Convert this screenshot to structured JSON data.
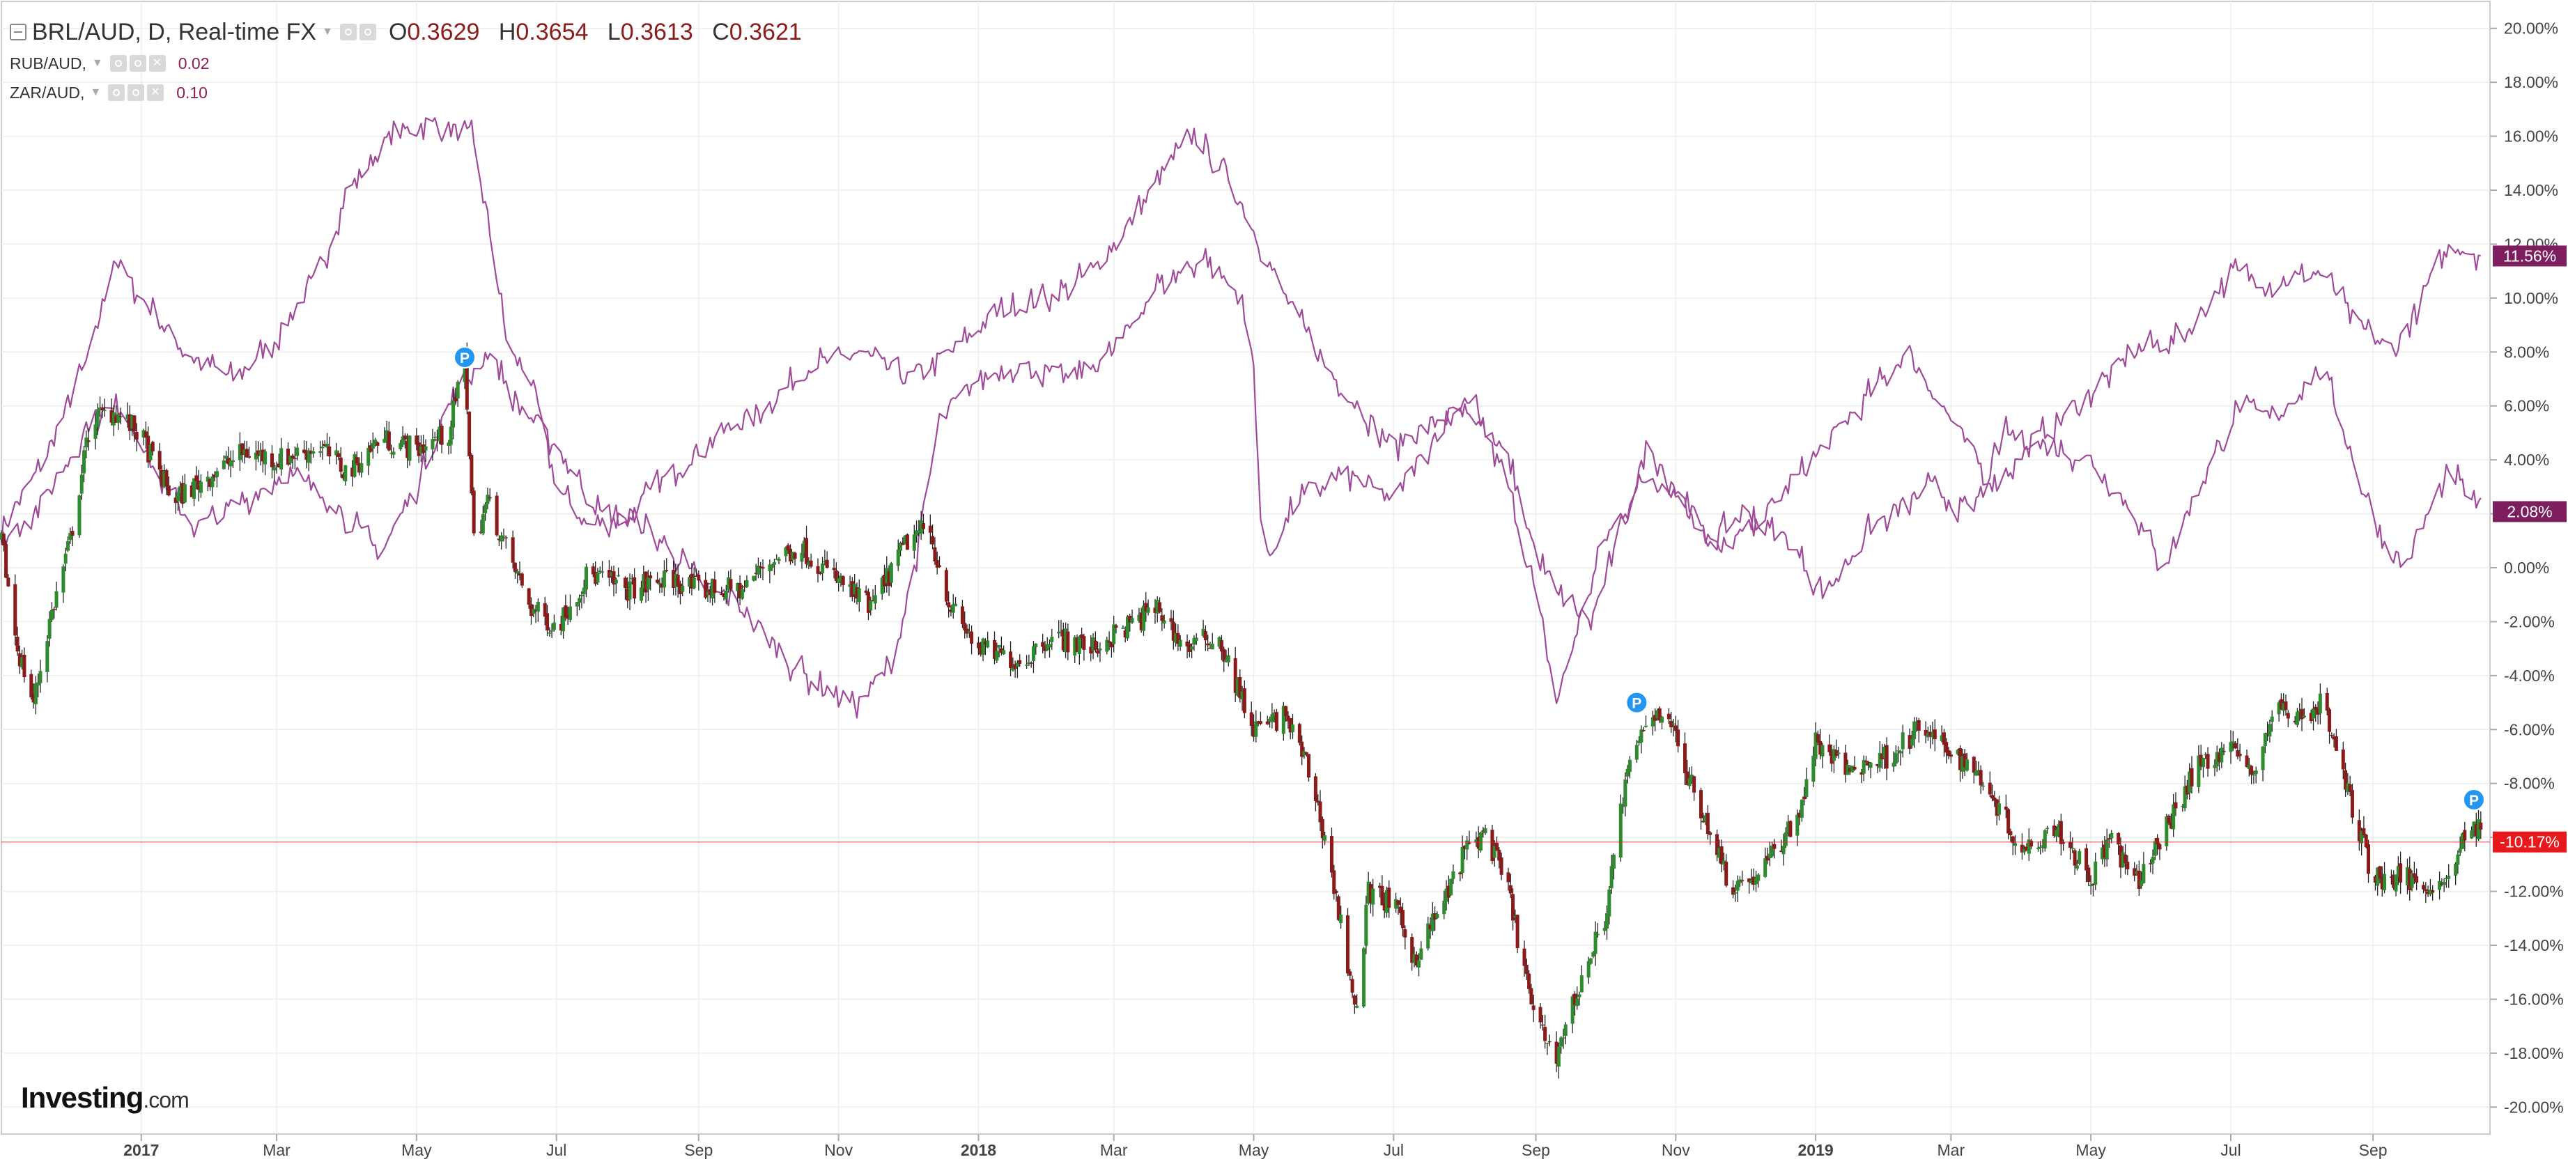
{
  "header": {
    "title": "BRL/AUD, D, Real-time FX",
    "ohlc": [
      {
        "key": "O",
        "value": "0.3629"
      },
      {
        "key": "H",
        "value": "0.3654"
      },
      {
        "key": "L",
        "value": "0.3613"
      },
      {
        "key": "C",
        "value": "0.3621"
      }
    ],
    "overlays": [
      {
        "label": "RUB/AUD,",
        "value": "0.02"
      },
      {
        "label": "ZAR/AUD,",
        "value": "0.10"
      }
    ]
  },
  "branding": {
    "logo_main": "Investing",
    "logo_suffix": ".com"
  },
  "colors": {
    "up": "#2e8b2e",
    "down": "#8b1a1a",
    "overlay": "#a04a9a",
    "overlay_badge": "#7d1f5e",
    "current_price": "#e8191c",
    "marker": "#2196f3",
    "grid": "#eeeeee",
    "axis_text": "#444444"
  },
  "chart_data": {
    "type": "candlestick",
    "y_unit": "percent change",
    "ylim": [
      -21,
      21
    ],
    "y_ticks": [
      20,
      18,
      16,
      14,
      12,
      10,
      8,
      6,
      4,
      2,
      0,
      -2,
      -4,
      -6,
      -8,
      -10,
      -12,
      -14,
      -16,
      -18,
      -20
    ],
    "y_tick_labels": [
      "20.00%",
      "18.00%",
      "16.00%",
      "14.00%",
      "12.00%",
      "10.00%",
      "8.00%",
      "6.00%",
      "4.00%",
      "2.00%",
      "0.00%",
      "-2.00%",
      "-4.00%",
      "-6.00%",
      "-8.00%",
      "-10.00%",
      "-12.00%",
      "-14.00%",
      "-16.00%",
      "-18.00%",
      "-20.00%"
    ],
    "x_range": [
      "2016-11-01",
      "2019-10-22"
    ],
    "x_ticks": [
      {
        "date": "2017-01-01",
        "label": "2017",
        "bold": true
      },
      {
        "date": "2017-03-01",
        "label": "Mar"
      },
      {
        "date": "2017-05-01",
        "label": "May"
      },
      {
        "date": "2017-07-01",
        "label": "Jul"
      },
      {
        "date": "2017-09-01",
        "label": "Sep"
      },
      {
        "date": "2017-11-01",
        "label": "Nov"
      },
      {
        "date": "2018-01-01",
        "label": "2018",
        "bold": true
      },
      {
        "date": "2018-03-01",
        "label": "Mar"
      },
      {
        "date": "2018-05-01",
        "label": "May"
      },
      {
        "date": "2018-07-01",
        "label": "Jul"
      },
      {
        "date": "2018-09-01",
        "label": "Sep"
      },
      {
        "date": "2018-11-01",
        "label": "Nov"
      },
      {
        "date": "2019-01-01",
        "label": "2019",
        "bold": true
      },
      {
        "date": "2019-03-01",
        "label": "Mar"
      },
      {
        "date": "2019-05-01",
        "label": "May"
      },
      {
        "date": "2019-07-01",
        "label": "Jul"
      },
      {
        "date": "2019-09-01",
        "label": "Sep"
      }
    ],
    "main_series": {
      "name": "BRL/AUD",
      "close_path": [
        [
          "2016-11-01",
          1
        ],
        [
          "2016-11-08",
          -3
        ],
        [
          "2016-11-15",
          -5
        ],
        [
          "2016-11-22",
          -2
        ],
        [
          "2016-12-01",
          1
        ],
        [
          "2016-12-10",
          5.5
        ],
        [
          "2016-12-20",
          5.8
        ],
        [
          "2016-12-31",
          5
        ],
        [
          "2017-01-15",
          2.5
        ],
        [
          "2017-02-01",
          3.5
        ],
        [
          "2017-02-15",
          4.3
        ],
        [
          "2017-03-01",
          4.0
        ],
        [
          "2017-03-20",
          4.5
        ],
        [
          "2017-04-01",
          3.5
        ],
        [
          "2017-04-15",
          4.8
        ],
        [
          "2017-05-01",
          4.4
        ],
        [
          "2017-05-15",
          5.0
        ],
        [
          "2017-05-22",
          7.8
        ],
        [
          "2017-05-26",
          1.0
        ],
        [
          "2017-06-01",
          2.5
        ],
        [
          "2017-06-10",
          0.5
        ],
        [
          "2017-06-20",
          -1.5
        ],
        [
          "2017-07-01",
          -2.2
        ],
        [
          "2017-07-15",
          -0.2
        ],
        [
          "2017-08-01",
          -0.8
        ],
        [
          "2017-08-20",
          -0.4
        ],
        [
          "2017-09-01",
          -0.8
        ],
        [
          "2017-09-20",
          -0.8
        ],
        [
          "2017-10-01",
          0.2
        ],
        [
          "2017-10-15",
          0.8
        ],
        [
          "2017-11-01",
          -0.5
        ],
        [
          "2017-11-15",
          -1.5
        ],
        [
          "2017-12-01",
          1.0
        ],
        [
          "2017-12-10",
          1.5
        ],
        [
          "2017-12-20",
          -1.5
        ],
        [
          "2018-01-01",
          -3.0
        ],
        [
          "2018-01-20",
          -3.5
        ],
        [
          "2018-02-01",
          -2.5
        ],
        [
          "2018-02-20",
          -3.0
        ],
        [
          "2018-03-01",
          -2.5
        ],
        [
          "2018-03-20",
          -1.5
        ],
        [
          "2018-04-01",
          -3.0
        ],
        [
          "2018-04-15",
          -2.5
        ],
        [
          "2018-05-01",
          -6.0
        ],
        [
          "2018-05-15",
          -5.5
        ],
        [
          "2018-05-25",
          -7.5
        ],
        [
          "2018-06-01",
          -10.0
        ],
        [
          "2018-06-15",
          -16.5
        ],
        [
          "2018-06-20",
          -12.0
        ],
        [
          "2018-07-01",
          -12.5
        ],
        [
          "2018-07-10",
          -14.5
        ],
        [
          "2018-07-25",
          -12.0
        ],
        [
          "2018-08-01",
          -10.5
        ],
        [
          "2018-08-10",
          -9.8
        ],
        [
          "2018-08-20",
          -12.0
        ],
        [
          "2018-09-01",
          -17.0
        ],
        [
          "2018-09-10",
          -18.0
        ],
        [
          "2018-09-20",
          -15.5
        ],
        [
          "2018-10-01",
          -13.0
        ],
        [
          "2018-10-10",
          -8.0
        ],
        [
          "2018-10-20",
          -5.5
        ],
        [
          "2018-10-28",
          -5.2
        ],
        [
          "2018-11-05",
          -7.5
        ],
        [
          "2018-11-15",
          -9.5
        ],
        [
          "2018-11-25",
          -11.8
        ],
        [
          "2018-12-05",
          -11.5
        ],
        [
          "2018-12-15",
          -10.5
        ],
        [
          "2018-12-25",
          -9.0
        ],
        [
          "2019-01-01",
          -6.5
        ],
        [
          "2019-01-15",
          -7.5
        ],
        [
          "2019-02-01",
          -7.0
        ],
        [
          "2019-02-15",
          -6.0
        ],
        [
          "2019-03-01",
          -6.8
        ],
        [
          "2019-03-15",
          -7.8
        ],
        [
          "2019-04-01",
          -10.5
        ],
        [
          "2019-04-15",
          -9.5
        ],
        [
          "2019-05-01",
          -11.5
        ],
        [
          "2019-05-10",
          -10.0
        ],
        [
          "2019-05-20",
          -11.8
        ],
        [
          "2019-06-01",
          -10.0
        ],
        [
          "2019-06-15",
          -7.5
        ],
        [
          "2019-07-01",
          -6.5
        ],
        [
          "2019-07-10",
          -7.8
        ],
        [
          "2019-07-20",
          -5.2
        ],
        [
          "2019-08-01",
          -5.5
        ],
        [
          "2019-08-10",
          -5.0
        ],
        [
          "2019-08-20",
          -8.0
        ],
        [
          "2019-09-01",
          -11.5
        ],
        [
          "2019-09-15",
          -11.5
        ],
        [
          "2019-10-01",
          -11.8
        ],
        [
          "2019-10-10",
          -10.2
        ],
        [
          "2019-10-16",
          -9.6
        ],
        [
          "2019-10-20",
          -10.17
        ]
      ]
    },
    "overlay_series": [
      {
        "name": "RUB/AUD",
        "path": [
          [
            "2016-11-01",
            1.5
          ],
          [
            "2016-11-20",
            4.0
          ],
          [
            "2016-12-10",
            8.0
          ],
          [
            "2016-12-20",
            11.5
          ],
          [
            "2017-01-01",
            10.0
          ],
          [
            "2017-01-20",
            8.0
          ],
          [
            "2017-02-10",
            7.0
          ],
          [
            "2017-03-01",
            8.5
          ],
          [
            "2017-03-20",
            11.0
          ],
          [
            "2017-04-01",
            14.0
          ],
          [
            "2017-04-20",
            16.0
          ],
          [
            "2017-05-05",
            16.5
          ],
          [
            "2017-05-25",
            16.0
          ],
          [
            "2017-06-01",
            13.0
          ],
          [
            "2017-06-10",
            8.0
          ],
          [
            "2017-06-20",
            7.0
          ],
          [
            "2017-07-01",
            3.0
          ],
          [
            "2017-07-15",
            1.5
          ],
          [
            "2017-08-01",
            2.0
          ],
          [
            "2017-08-20",
            3.5
          ],
          [
            "2017-09-10",
            5.0
          ],
          [
            "2017-10-01",
            6.0
          ],
          [
            "2017-10-20",
            7.5
          ],
          [
            "2017-11-10",
            8.0
          ],
          [
            "2017-12-01",
            7.0
          ],
          [
            "2017-12-20",
            8.0
          ],
          [
            "2018-01-10",
            9.5
          ],
          [
            "2018-02-01",
            10.0
          ],
          [
            "2018-02-20",
            11.0
          ],
          [
            "2018-03-10",
            13.0
          ],
          [
            "2018-03-25",
            15.0
          ],
          [
            "2018-04-05",
            16.0
          ],
          [
            "2018-04-20",
            14.5
          ],
          [
            "2018-05-01",
            12.5
          ],
          [
            "2018-05-15",
            10.0
          ],
          [
            "2018-06-01",
            7.5
          ],
          [
            "2018-06-15",
            6.0
          ],
          [
            "2018-07-01",
            4.5
          ],
          [
            "2018-07-20",
            5.5
          ],
          [
            "2018-08-05",
            6.0
          ],
          [
            "2018-08-20",
            3.0
          ],
          [
            "2018-09-01",
            -1.0
          ],
          [
            "2018-09-10",
            -5.0
          ],
          [
            "2018-09-20",
            -2.0
          ],
          [
            "2018-10-01",
            1.0
          ],
          [
            "2018-10-20",
            3.5
          ],
          [
            "2018-11-05",
            2.5
          ],
          [
            "2018-11-20",
            0.5
          ],
          [
            "2018-12-10",
            2.0
          ],
          [
            "2018-12-31",
            4.0
          ],
          [
            "2019-01-20",
            6.0
          ],
          [
            "2019-02-10",
            8.0
          ],
          [
            "2019-03-01",
            5.5
          ],
          [
            "2019-03-20",
            3.0
          ],
          [
            "2019-04-10",
            5.0
          ],
          [
            "2019-05-01",
            6.5
          ],
          [
            "2019-05-20",
            8.0
          ],
          [
            "2019-06-10",
            8.5
          ],
          [
            "2019-07-01",
            11.0
          ],
          [
            "2019-07-20",
            10.5
          ],
          [
            "2019-08-10",
            11.0
          ],
          [
            "2019-08-25",
            9.0
          ],
          [
            "2019-09-10",
            8.0
          ],
          [
            "2019-09-25",
            10.5
          ],
          [
            "2019-10-05",
            12.0
          ],
          [
            "2019-10-20",
            11.56
          ]
        ]
      },
      {
        "name": "ZAR/AUD",
        "path": [
          [
            "2016-11-01",
            1.0
          ],
          [
            "2016-11-20",
            2.5
          ],
          [
            "2016-12-10",
            5.5
          ],
          [
            "2016-12-25",
            6.0
          ],
          [
            "2017-01-10",
            3.0
          ],
          [
            "2017-01-25",
            1.5
          ],
          [
            "2017-02-15",
            2.5
          ],
          [
            "2017-03-05",
            3.5
          ],
          [
            "2017-03-25",
            2.5
          ],
          [
            "2017-04-15",
            0.5
          ],
          [
            "2017-05-01",
            3.0
          ],
          [
            "2017-05-15",
            6.0
          ],
          [
            "2017-06-01",
            8.0
          ],
          [
            "2017-06-15",
            6.0
          ],
          [
            "2017-07-01",
            4.5
          ],
          [
            "2017-07-20",
            2.0
          ],
          [
            "2017-08-10",
            1.5
          ],
          [
            "2017-09-01",
            -0.5
          ],
          [
            "2017-09-20",
            -1.5
          ],
          [
            "2017-10-10",
            -3.5
          ],
          [
            "2017-10-25",
            -4.5
          ],
          [
            "2017-11-10",
            -5.0
          ],
          [
            "2017-11-25",
            -3.5
          ],
          [
            "2017-12-05",
            0.5
          ],
          [
            "2017-12-15",
            5.5
          ],
          [
            "2018-01-01",
            7.0
          ],
          [
            "2018-01-20",
            7.5
          ],
          [
            "2018-02-10",
            7.0
          ],
          [
            "2018-03-01",
            8.0
          ],
          [
            "2018-03-20",
            10.5
          ],
          [
            "2018-04-10",
            11.5
          ],
          [
            "2018-04-25",
            10.0
          ],
          [
            "2018-05-01",
            7.5
          ],
          [
            "2018-05-05",
            0.0
          ],
          [
            "2018-05-20",
            2.5
          ],
          [
            "2018-06-10",
            3.5
          ],
          [
            "2018-07-01",
            2.5
          ],
          [
            "2018-07-20",
            5.0
          ],
          [
            "2018-08-01",
            6.0
          ],
          [
            "2018-08-20",
            4.0
          ],
          [
            "2018-09-01",
            0.5
          ],
          [
            "2018-09-10",
            -1.0
          ],
          [
            "2018-09-25",
            -2.0
          ],
          [
            "2018-10-05",
            0.5
          ],
          [
            "2018-10-20",
            4.5
          ],
          [
            "2018-11-01",
            3.0
          ],
          [
            "2018-11-15",
            1.0
          ],
          [
            "2018-12-01",
            2.0
          ],
          [
            "2018-12-20",
            1.0
          ],
          [
            "2019-01-05",
            -1.0
          ],
          [
            "2019-01-25",
            1.5
          ],
          [
            "2019-02-20",
            3.0
          ],
          [
            "2019-03-10",
            2.0
          ],
          [
            "2019-03-25",
            5.0
          ],
          [
            "2019-04-10",
            4.5
          ],
          [
            "2019-05-01",
            4.0
          ],
          [
            "2019-05-20",
            2.0
          ],
          [
            "2019-06-01",
            0.0
          ],
          [
            "2019-06-20",
            3.5
          ],
          [
            "2019-07-05",
            6.0
          ],
          [
            "2019-07-20",
            5.5
          ],
          [
            "2019-08-10",
            7.5
          ],
          [
            "2019-08-25",
            3.5
          ],
          [
            "2019-09-05",
            1.0
          ],
          [
            "2019-09-15",
            0.0
          ],
          [
            "2019-09-25",
            2.0
          ],
          [
            "2019-10-05",
            3.5
          ],
          [
            "2019-10-20",
            2.08
          ]
        ]
      }
    ],
    "price_labels": [
      {
        "series": "RUB/AUD",
        "value": 11.56,
        "text": "11.56%",
        "color": "#7d1f5e"
      },
      {
        "series": "ZAR/AUD",
        "value": 2.08,
        "text": "2.08%",
        "color": "#7d1f5e"
      },
      {
        "series": "BRL/AUD",
        "value": -10.17,
        "text": "-10.17%",
        "color": "#e8191c"
      }
    ],
    "current_price_line": -10.17,
    "markers": [
      {
        "date": "2017-05-22",
        "value": 7.8,
        "label": "P"
      },
      {
        "date": "2018-10-15",
        "value": -5.0,
        "label": "P"
      },
      {
        "date": "2019-10-15",
        "value": -8.6,
        "label": "P"
      }
    ]
  }
}
